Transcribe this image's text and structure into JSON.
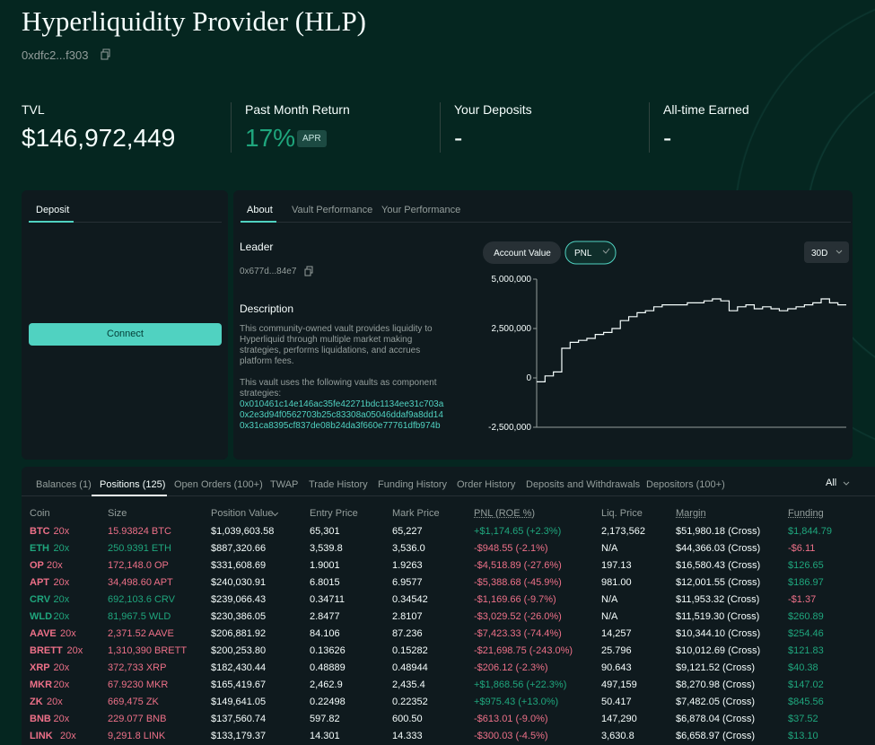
{
  "header": {
    "title": "Hyperliquidity Provider (HLP)",
    "address": "0xdfc2...f303"
  },
  "stats": [
    {
      "label": "TVL",
      "value": "$146,972,449"
    },
    {
      "label": "Past Month Return",
      "value": "17%",
      "badge": "APR"
    },
    {
      "label": "Your Deposits",
      "value": "-"
    },
    {
      "label": "All-time Earned",
      "value": "-"
    }
  ],
  "deposit": {
    "tab": "Deposit",
    "button": "Connect"
  },
  "about": {
    "tabs": [
      "About",
      "Vault Performance",
      "Your Performance"
    ],
    "leader_label": "Leader",
    "leader_address": "0x677d...84e7",
    "description_label": "Description",
    "paragraphs": [
      "This community-owned vault provides liquidity to Hyperliquid through multiple market making strategies, performs liquidations, and accrues platform fees.",
      "This vault uses the following vaults as component strategies:"
    ],
    "vaults": [
      "0x010461c14e146ac35fe42271bdc1134ee31c703a",
      "0x2e3d94f0562703b25c83308a05046ddaf9a8dd14",
      "0x31ca8395cf837de08b24da3f660e77761dfb974b"
    ]
  },
  "chart": {
    "type": "line",
    "toggles": [
      "Account Value",
      "PNL"
    ],
    "range": "30D",
    "color": "#f6fefd",
    "ylim": [
      -2500000,
      5000000
    ],
    "yticks": [
      {
        "value": 5000000,
        "label": "5,000,000"
      },
      {
        "value": 2500000,
        "label": "2,500,000"
      },
      0,
      {
        "value": -2500000,
        "label": "-2,500,000"
      }
    ],
    "values": [
      -200000,
      100000,
      300000,
      1500000,
      1800000,
      1900000,
      2000000,
      2200000,
      2300000,
      2500000,
      2900000,
      3100000,
      3300000,
      3400000,
      3600000,
      3700000,
      3700000,
      3700000,
      3800000,
      3800000,
      3900000,
      4000000,
      3900000,
      3400000,
      3600000,
      3700000,
      3500000,
      3600000,
      3500000,
      3400000,
      3500000,
      3600000,
      3700000,
      3800000,
      4000000,
      3800000,
      3700000
    ]
  },
  "table": {
    "tabs": [
      "Balances (1)",
      "Positions (125)",
      "Open Orders (100+)",
      "TWAP",
      "Trade History",
      "Funding History",
      "Order History",
      "Deposits and Withdrawals",
      "Depositors (100+)"
    ],
    "filter": "All",
    "columns": [
      "Coin",
      "Size",
      "Position Value",
      "Entry Price",
      "Mark Price",
      "PNL (ROE %)",
      "Liq. Price",
      "Margin",
      "Funding"
    ],
    "rows": [
      {
        "coin": "BTC",
        "leverage": "20x",
        "color": "#ed7088",
        "cells": [
          "15.93824 BTC",
          "$1,039,603.58",
          "65,301",
          "65,227",
          "+$1,174.65 (+2.3%)",
          "2,173,562",
          "$51,980.18 (Cross)",
          "$1,844.79"
        ]
      },
      {
        "coin": "ETH",
        "leverage": "20x",
        "color": "#1fa67d",
        "cells": [
          "250.9391 ETH",
          "$887,320.66",
          "3,539.8",
          "3,536.0",
          "-$948.55 (-2.1%)",
          "N/A",
          "$44,366.03 (Cross)",
          "-$6.11"
        ]
      },
      {
        "coin": "OP",
        "leverage": "20x",
        "color": "#ed7088",
        "cells": [
          "172,148.0 OP",
          "$331,608.69",
          "1.9001",
          "1.9263",
          "-$4,518.89 (-27.6%)",
          "197.13",
          "$16,580.43 (Cross)",
          "$126.65"
        ]
      },
      {
        "coin": "APT",
        "leverage": "20x",
        "color": "#ed7088",
        "cells": [
          "34,498.60 APT",
          "$240,030.91",
          "6.8015",
          "6.9577",
          "-$5,388.68 (-45.9%)",
          "981.00",
          "$12,001.55 (Cross)",
          "$186.97"
        ]
      },
      {
        "coin": "CRV",
        "leverage": "20x",
        "color": "#1fa67d",
        "cells": [
          "692,103.6 CRV",
          "$239,066.43",
          "0.34711",
          "0.34542",
          "-$1,169.66 (-9.7%)",
          "N/A",
          "$11,953.32 (Cross)",
          "-$1.37"
        ]
      },
      {
        "coin": "WLD",
        "leverage": "20x",
        "color": "#1fa67d",
        "cells": [
          "81,967.5 WLD",
          "$230,386.05",
          "2.8477",
          "2.8107",
          "-$3,029.52 (-26.0%)",
          "N/A",
          "$11,519.30 (Cross)",
          "$260.89"
        ]
      },
      {
        "coin": "AAVE",
        "leverage": "20x",
        "color": "#ed7088",
        "cells": [
          "2,371.52 AAVE",
          "$206,881.92",
          "84.106",
          "87.236",
          "-$7,423.33 (-74.4%)",
          "14,257",
          "$10,344.10 (Cross)",
          "$254.46"
        ]
      },
      {
        "coin": "BRETT",
        "leverage": "20x",
        "color": "#ed7088",
        "cells": [
          "1,310,390 BRETT",
          "$200,253.80",
          "0.13626",
          "0.15282",
          "-$21,698.75 (-243.0%)",
          "25.796",
          "$10,012.69 (Cross)",
          "$121.83"
        ]
      },
      {
        "coin": "XRP",
        "leverage": "20x",
        "color": "#ed7088",
        "cells": [
          "372,733 XRP",
          "$182,430.44",
          "0.48889",
          "0.48944",
          "-$206.12 (-2.3%)",
          "90.643",
          "$9,121.52 (Cross)",
          "$40.38"
        ]
      },
      {
        "coin": "MKR",
        "leverage": "20x",
        "color": "#ed7088",
        "cells": [
          "67.9230 MKR",
          "$165,419.67",
          "2,462.9",
          "2,435.4",
          "+$1,868.56 (+22.3%)",
          "497,159",
          "$8,270.98 (Cross)",
          "$147.02"
        ]
      },
      {
        "coin": "ZK",
        "leverage": "20x",
        "color": "#ed7088",
        "cells": [
          "669,475 ZK",
          "$149,641.05",
          "0.22498",
          "0.22352",
          "+$975.43 (+13.0%)",
          "50.417",
          "$7,482.05 (Cross)",
          "$845.56"
        ]
      },
      {
        "coin": "BNB",
        "leverage": "20x",
        "color": "#ed7088",
        "cells": [
          "229.077 BNB",
          "$137,560.74",
          "597.82",
          "600.50",
          "-$613.01 (-9.0%)",
          "147,290",
          "$6,878.04 (Cross)",
          "$37.52"
        ]
      },
      {
        "coin": "LINK",
        "leverage": "20x",
        "color": "#ed7088",
        "cells": [
          "9,291.8 LINK",
          "$133,179.37",
          "14.301",
          "14.333",
          "-$300.03 (-4.5%)",
          "3,630.8",
          "$6,658.97 (Cross)",
          "$13.10"
        ]
      }
    ]
  }
}
